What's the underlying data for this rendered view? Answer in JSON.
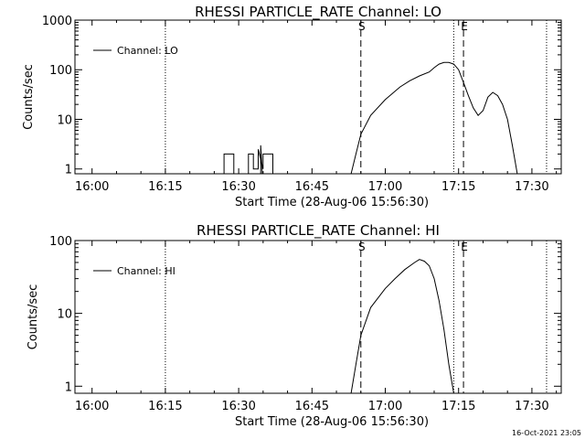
{
  "footer": {
    "timestamp": "16-Oct-2021 23:05"
  },
  "chart_data": [
    {
      "type": "line",
      "title": "RHESSI PARTICLE_RATE Channel: LO",
      "xlabel": "Start Time (28-Aug-06 15:56:30)",
      "ylabel": "Counts/sec",
      "yscale": "log",
      "xlim": [
        "15:56:30",
        "17:36:00"
      ],
      "ylim": [
        0.8,
        1000
      ],
      "xticks": [
        "16:00",
        "16:15",
        "16:30",
        "16:45",
        "17:00",
        "17:15",
        "17:30"
      ],
      "yticks": [
        {
          "value": 1,
          "label": "1"
        },
        {
          "value": 10,
          "label": "10"
        },
        {
          "value": 100,
          "label": "100"
        },
        {
          "value": 1000,
          "label": "1000"
        }
      ],
      "legend": {
        "label": "Channel: LO",
        "position": "top-left"
      },
      "dotted_lines": [
        "16:15",
        "17:14",
        "17:33"
      ],
      "dashed_lines": [
        {
          "time": "16:55",
          "label": "S"
        },
        {
          "time": "17:16",
          "label": "E"
        }
      ],
      "series": [
        {
          "name": "Channel: LO",
          "segments": [
            [
              [
                "16:27",
                "0.8"
              ],
              [
                "16:27",
                "2"
              ],
              [
                "16:29",
                "2"
              ],
              [
                "16:29",
                "0.8"
              ]
            ],
            [
              [
                "16:32",
                "0.8"
              ],
              [
                "16:32",
                "2"
              ],
              [
                "16:33",
                "2"
              ],
              [
                "16:33",
                "1"
              ],
              [
                "16:34",
                "1"
              ],
              [
                "16:34",
                "2.5"
              ],
              [
                "16:35",
                "1"
              ],
              [
                "16:35",
                "2"
              ],
              [
                "16:37",
                "2"
              ],
              [
                "16:37",
                "0.8"
              ]
            ],
            [
              [
                "16:34:30",
                "0.8"
              ],
              [
                "16:34:30",
                "3"
              ],
              [
                "16:34:50",
                "0.8"
              ]
            ],
            [
              [
                "16:53",
                "0.8"
              ],
              [
                "16:54",
                "2"
              ],
              [
                "16:55",
                "5"
              ],
              [
                "16:57",
                "12"
              ],
              [
                "17:00",
                "25"
              ],
              [
                "17:03",
                "45"
              ],
              [
                "17:05",
                "60"
              ],
              [
                "17:07",
                "75"
              ],
              [
                "17:09",
                "90"
              ],
              [
                "17:10",
                "110"
              ],
              [
                "17:11",
                "130"
              ],
              [
                "17:12",
                "140"
              ],
              [
                "17:13",
                "140"
              ],
              [
                "17:14",
                "130"
              ],
              [
                "17:15",
                "100"
              ],
              [
                "17:16",
                "55"
              ],
              [
                "17:17",
                "30"
              ],
              [
                "17:18",
                "17"
              ],
              [
                "17:19",
                "12"
              ],
              [
                "17:20",
                "15"
              ],
              [
                "17:21",
                "28"
              ],
              [
                "17:22",
                "35"
              ],
              [
                "17:23",
                "30"
              ],
              [
                "17:24",
                "20"
              ],
              [
                "17:25",
                "10"
              ],
              [
                "17:26",
                "3"
              ],
              [
                "17:27",
                "0.8"
              ]
            ]
          ]
        }
      ]
    },
    {
      "type": "line",
      "title": "RHESSI PARTICLE_RATE Channel: HI",
      "xlabel": "Start Time (28-Aug-06 15:56:30)",
      "ylabel": "Counts/sec",
      "yscale": "log",
      "xlim": [
        "15:56:30",
        "17:36:00"
      ],
      "ylim": [
        0.8,
        100
      ],
      "xticks": [
        "16:00",
        "16:15",
        "16:30",
        "16:45",
        "17:00",
        "17:15",
        "17:30"
      ],
      "yticks": [
        {
          "value": 1,
          "label": "1"
        },
        {
          "value": 10,
          "label": "10"
        },
        {
          "value": 100,
          "label": "100"
        }
      ],
      "legend": {
        "label": "Channel: HI",
        "position": "top-left"
      },
      "dotted_lines": [
        "16:15",
        "17:14",
        "17:33"
      ],
      "dashed_lines": [
        {
          "time": "16:55",
          "label": "S"
        },
        {
          "time": "17:16",
          "label": "E"
        }
      ],
      "series": [
        {
          "name": "Channel: HI",
          "segments": [
            [
              [
                "16:53",
                "0.8"
              ],
              [
                "16:54",
                "2"
              ],
              [
                "16:55",
                "5"
              ],
              [
                "16:57",
                "12"
              ],
              [
                "17:00",
                "22"
              ],
              [
                "17:02",
                "30"
              ],
              [
                "17:04",
                "40"
              ],
              [
                "17:06",
                "50"
              ],
              [
                "17:07",
                "55"
              ],
              [
                "17:08",
                "52"
              ],
              [
                "17:09",
                "45"
              ],
              [
                "17:10",
                "30"
              ],
              [
                "17:11",
                "15"
              ],
              [
                "17:12",
                "6"
              ],
              [
                "17:13",
                "2"
              ],
              [
                "17:14",
                "0.8"
              ]
            ]
          ]
        }
      ]
    }
  ]
}
